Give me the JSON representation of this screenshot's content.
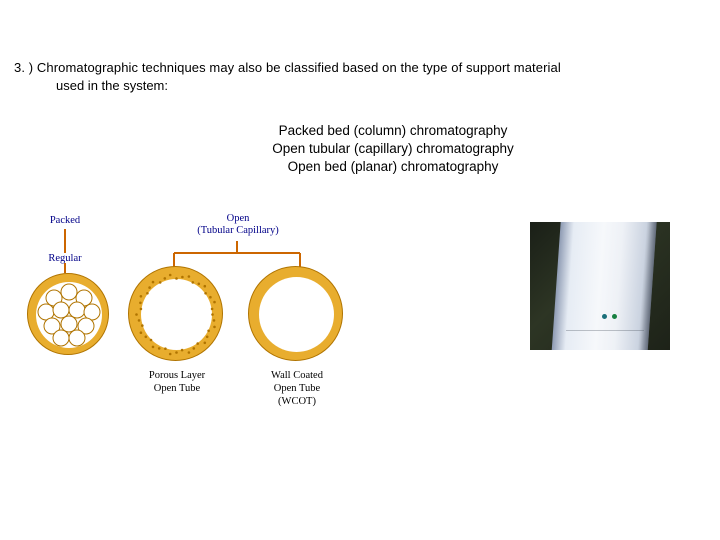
{
  "intro": {
    "line1": "3. ) Chromatographic techniques may also be classified based on the type of support material",
    "line2": "used in the system:"
  },
  "types": {
    "packed": "Packed bed (column) chromatography",
    "open_tubular": "Open tubular (capillary) chromatography",
    "open_bed": "Open bed (planar) chromatography"
  },
  "diagram": {
    "packed_label": "Packed",
    "regular_label": "Regular",
    "open_label_l1": "Open",
    "open_label_l2": "(Tubular Capillary)",
    "caption_porous_l1": "Porous Layer",
    "caption_porous_l2": "Open Tube",
    "caption_wcot_l1": "Wall Coated",
    "caption_wcot_l2": "Open Tube",
    "caption_wcot_l3": "(WCOT)",
    "colors": {
      "ring_fill": "#e8ad2e",
      "ring_edge": "#b07400",
      "label_blue": "#000088",
      "tick": "#cc6600"
    }
  }
}
